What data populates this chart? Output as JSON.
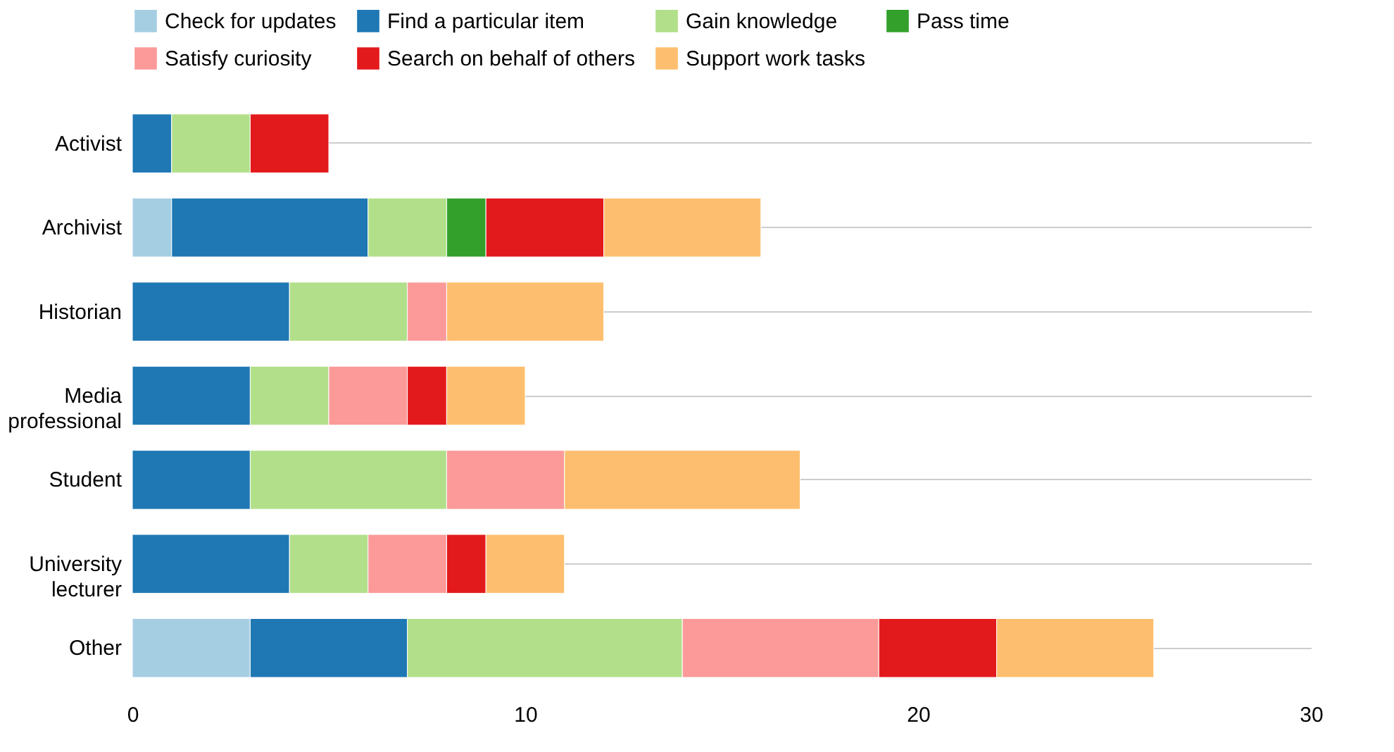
{
  "chart_data": {
    "type": "bar",
    "orientation": "horizontal",
    "stacked": true,
    "categories": [
      "Activist",
      "Archivist",
      "Historian",
      "Media professional",
      "Student",
      "University lecturer",
      "Other"
    ],
    "series": [
      {
        "name": "Check for updates",
        "color": "#a6cee3",
        "values": [
          null,
          1,
          null,
          null,
          null,
          null,
          3
        ]
      },
      {
        "name": "Find a particular item",
        "color": "#1f78b4",
        "values": [
          1,
          5,
          4,
          3,
          3,
          4,
          4
        ]
      },
      {
        "name": "Gain knowledge",
        "color": "#b2df8a",
        "values": [
          2,
          2,
          3,
          2,
          5,
          2,
          7
        ]
      },
      {
        "name": "Pass time",
        "color": "#33a02c",
        "values": [
          null,
          1,
          null,
          null,
          null,
          null,
          null
        ]
      },
      {
        "name": "Satisfy curiosity",
        "color": "#fb9a99",
        "values": [
          null,
          null,
          1,
          2,
          3,
          2,
          5
        ]
      },
      {
        "name": "Search on behalf of others",
        "color": "#e31a1c",
        "values": [
          2,
          3,
          null,
          1,
          null,
          1,
          3
        ]
      },
      {
        "name": "Support work tasks",
        "color": "#fdbf6f",
        "values": [
          null,
          4,
          4,
          2,
          6,
          2,
          4
        ]
      }
    ],
    "xlim": [
      0,
      30
    ],
    "xticks": [
      0,
      10,
      20,
      30
    ],
    "grid": "y",
    "legend": "top"
  }
}
